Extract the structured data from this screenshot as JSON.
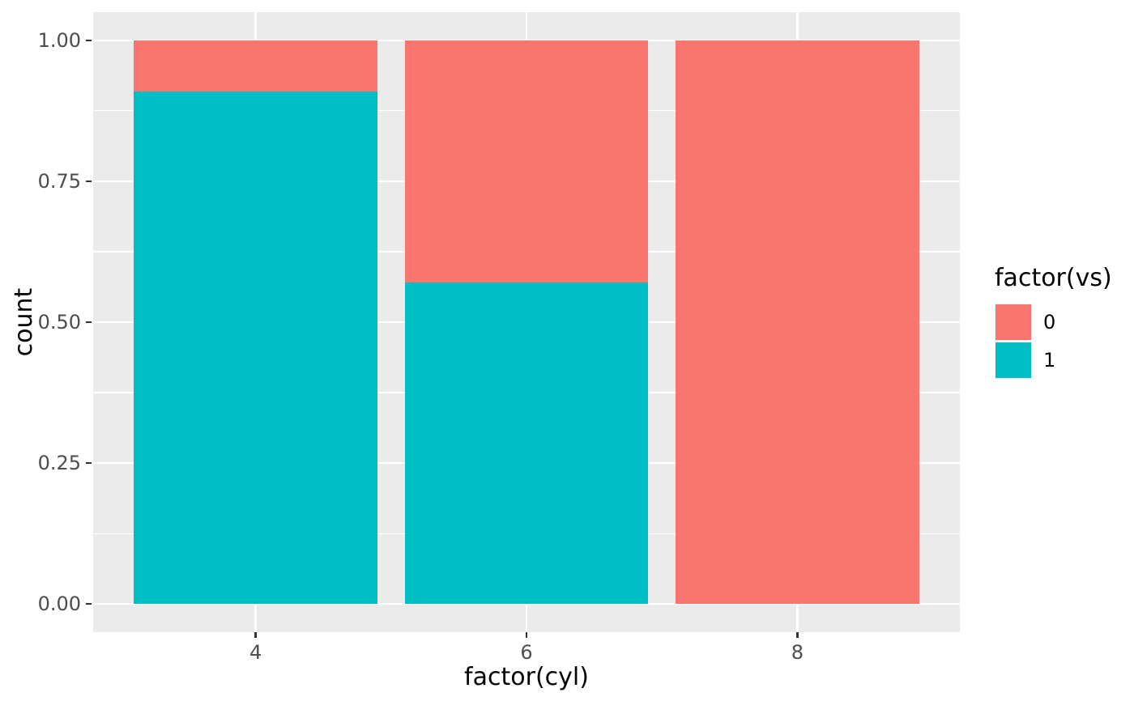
{
  "chart_data": {
    "type": "bar",
    "stacked": true,
    "position": "fill",
    "title": "",
    "xlabel": "factor(cyl)",
    "ylabel": "count",
    "categories": [
      "4",
      "6",
      "8"
    ],
    "series": [
      {
        "name": "0",
        "color": "#F8766D",
        "values": [
          0.091,
          0.429,
          1.0
        ]
      },
      {
        "name": "1",
        "color": "#00BFC4",
        "values": [
          0.909,
          0.571,
          0.0
        ]
      }
    ],
    "stack_order_bottom_to_top": [
      "1",
      "0"
    ],
    "ylim": [
      0,
      1
    ],
    "y_ticks": {
      "values": [
        0,
        0.25,
        0.5,
        0.75,
        1
      ],
      "labels": [
        "0.00",
        "0.25",
        "0.50",
        "0.75",
        "1.00"
      ]
    },
    "grid": true,
    "legend": {
      "title": "factor(vs)",
      "position": "right",
      "entries": [
        {
          "label": "0",
          "color": "#F8766D"
        },
        {
          "label": "1",
          "color": "#00BFC4"
        }
      ]
    },
    "colors": {
      "panel_bg": "#EBEBEB",
      "grid": "#FFFFFF",
      "tick_text": "#4D4D4D",
      "axis_title_text": "#000000",
      "tick_mark": "#333333",
      "page_bg": "#FFFFFF",
      "legend_key_bg": "#F2F2F2"
    }
  }
}
